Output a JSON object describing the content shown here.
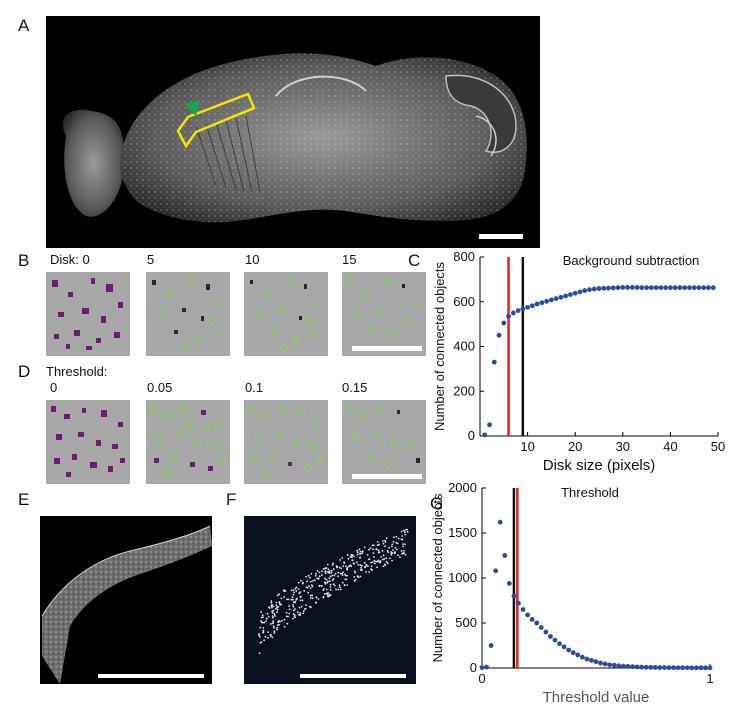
{
  "panels": {
    "a": {
      "letter": "A"
    },
    "b": {
      "letter": "B",
      "labels": [
        "Disk: 0",
        "5",
        "10",
        "15"
      ]
    },
    "c": {
      "letter": "C"
    },
    "d": {
      "letter": "D",
      "header": "Threshold:",
      "labels": [
        "0",
        "0.05",
        "0.1",
        "0.15"
      ]
    },
    "e": {
      "letter": "E"
    },
    "f": {
      "letter": "F"
    },
    "g": {
      "letter": "G"
    }
  },
  "colors": {
    "background_tile": "#a8a8a8",
    "purple_objects": "#6b1f6e",
    "green_outline": "#7ed957",
    "brain_region_outline": "#f2e600",
    "arrowhead": "#1aa34a",
    "dot": "#2b4ba0",
    "red_line": "#e02020",
    "black_line": "#111111"
  },
  "chart_data": [
    {
      "type": "scatter",
      "title": "Background subtraction",
      "xlabel": "Disk size (pixels)",
      "ylabel": "Number of connected objects",
      "xlim": [
        0,
        50
      ],
      "ylim": [
        0,
        800
      ],
      "xticks": [
        10,
        20,
        30,
        40,
        50
      ],
      "yticks": [
        0,
        200,
        400,
        600,
        800
      ],
      "vlines": [
        {
          "x": 6,
          "color": "red"
        },
        {
          "x": 9,
          "color": "black"
        }
      ],
      "x": [
        1,
        2,
        3,
        4,
        5,
        6,
        7,
        8,
        9,
        10,
        11,
        12,
        13,
        14,
        15,
        16,
        17,
        18,
        19,
        20,
        21,
        22,
        23,
        24,
        25,
        26,
        27,
        28,
        29,
        30,
        31,
        32,
        33,
        34,
        35,
        36,
        37,
        38,
        39,
        40,
        41,
        42,
        43,
        44,
        45,
        46,
        47,
        48,
        49
      ],
      "y": [
        5,
        50,
        330,
        450,
        505,
        535,
        550,
        560,
        568,
        575,
        582,
        590,
        596,
        602,
        608,
        614,
        620,
        626,
        632,
        638,
        644,
        650,
        654,
        657,
        659,
        660,
        661,
        662,
        663,
        664,
        664,
        664,
        664,
        663,
        663,
        663,
        663,
        663,
        663,
        663,
        663,
        663,
        663,
        663,
        663,
        663,
        663,
        663,
        663
      ]
    },
    {
      "type": "scatter",
      "title": "Threshold",
      "xlabel": "Threshold value",
      "ylabel": "Number of connected objects",
      "xlim": [
        0,
        1
      ],
      "ylim": [
        0,
        2000
      ],
      "xticks": [
        0,
        1
      ],
      "yticks": [
        0,
        500,
        1000,
        1500,
        2000
      ],
      "vlines": [
        {
          "x": 0.14,
          "color": "black"
        },
        {
          "x": 0.155,
          "color": "red"
        }
      ],
      "x": [
        0.0,
        0.02,
        0.04,
        0.06,
        0.08,
        0.1,
        0.12,
        0.14,
        0.16,
        0.18,
        0.2,
        0.22,
        0.24,
        0.26,
        0.28,
        0.3,
        0.32,
        0.34,
        0.36,
        0.38,
        0.4,
        0.42,
        0.44,
        0.46,
        0.48,
        0.5,
        0.52,
        0.54,
        0.56,
        0.58,
        0.6,
        0.62,
        0.64,
        0.66,
        0.68,
        0.7,
        0.72,
        0.74,
        0.76,
        0.78,
        0.8,
        0.82,
        0.84,
        0.86,
        0.88,
        0.9,
        0.92,
        0.94,
        0.96,
        0.98,
        1.0
      ],
      "y": [
        5,
        10,
        250,
        1080,
        1620,
        1250,
        940,
        800,
        720,
        650,
        590,
        540,
        500,
        450,
        400,
        350,
        310,
        270,
        235,
        200,
        170,
        145,
        120,
        100,
        85,
        70,
        55,
        45,
        35,
        30,
        25,
        20,
        18,
        15,
        12,
        10,
        8,
        7,
        6,
        5,
        5,
        4,
        4,
        3,
        3,
        3,
        2,
        2,
        2,
        2,
        2
      ]
    }
  ]
}
